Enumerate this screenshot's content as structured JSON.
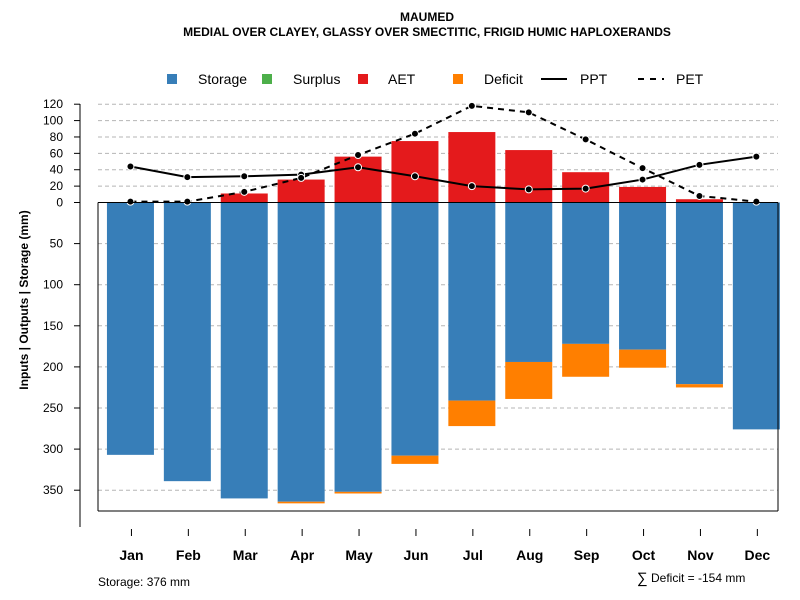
{
  "chart_data": {
    "type": "bar",
    "title": "MAUMED",
    "subtitle": "MEDIAL OVER CLAYEY, GLASSY OVER SMECTITIC, FRIGID HUMIC HAPLOXERANDS",
    "ylabel": "Inputs | Outputs | Storage     (mm)",
    "categories": [
      "Jan",
      "Feb",
      "Mar",
      "Apr",
      "May",
      "Jun",
      "Jul",
      "Aug",
      "Sep",
      "Oct",
      "Nov",
      "Dec"
    ],
    "upper_ticks": [
      "120",
      "100",
      "80",
      "60",
      "40",
      "20",
      "0"
    ],
    "lower_ticks": [
      "50",
      "100",
      "150",
      "200",
      "250",
      "300",
      "350"
    ],
    "upper_ylim": [
      0,
      120
    ],
    "lower_ylim": [
      0,
      376
    ],
    "series": [
      {
        "name": "Storage",
        "color": "#377eb8",
        "values": [
          307,
          339,
          360,
          364,
          352,
          308,
          241,
          194,
          172,
          179,
          221,
          276
        ]
      },
      {
        "name": "Surplus",
        "color": "#4daf4a",
        "values": [
          0,
          0,
          0,
          0,
          0,
          0,
          0,
          0,
          0,
          0,
          0,
          0
        ]
      },
      {
        "name": "AET",
        "color": "#e41a1c",
        "values": [
          0,
          0,
          11,
          28,
          56,
          75,
          86,
          64,
          37,
          19,
          4,
          0
        ]
      },
      {
        "name": "Deficit",
        "color": "#ff7f00",
        "values": [
          0,
          0,
          0,
          2,
          2,
          10,
          31,
          45,
          40,
          22,
          4,
          0
        ]
      },
      {
        "name": "PPT",
        "color": "#000000",
        "values": [
          44,
          31,
          32,
          34,
          43,
          32,
          20,
          16,
          17,
          28,
          46,
          56
        ]
      },
      {
        "name": "PET",
        "color": "#000000",
        "values": [
          1,
          1,
          13,
          30,
          58,
          84,
          118,
          110,
          77,
          42,
          8,
          1
        ]
      }
    ]
  },
  "legend": [
    {
      "label": "Storage",
      "symbol": "square",
      "color": "#377eb8"
    },
    {
      "label": "Surplus",
      "symbol": "square",
      "color": "#4daf4a"
    },
    {
      "label": "AET",
      "symbol": "square",
      "color": "#e41a1c"
    },
    {
      "label": "Deficit",
      "symbol": "square",
      "color": "#ff7f00"
    },
    {
      "label": "PPT",
      "symbol": "solid-line",
      "color": "#000000"
    },
    {
      "label": "PET",
      "symbol": "dashed-line",
      "color": "#000000"
    }
  ],
  "footer": {
    "storage_text": "Storage: 376 mm",
    "deficit_symbol": "∑",
    "deficit_text": "Deficit = -154 mm"
  }
}
